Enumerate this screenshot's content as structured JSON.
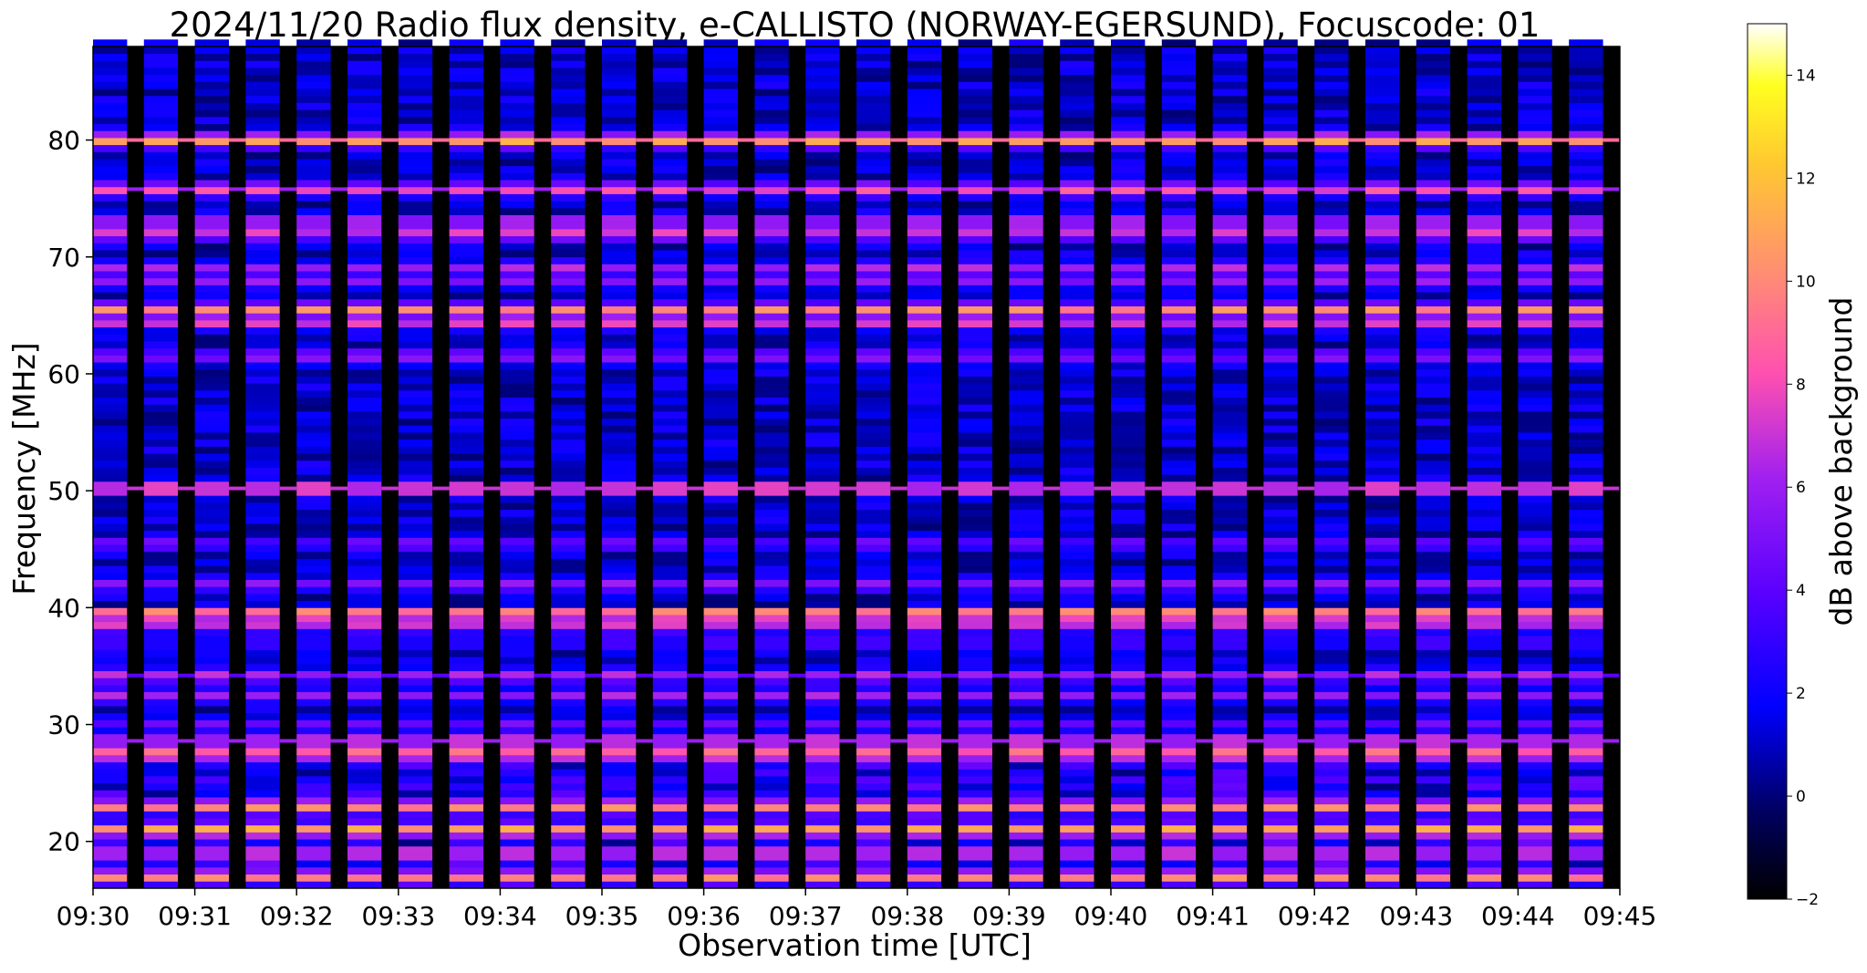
{
  "chart_data": {
    "type": "heatmap",
    "title": "2024/11/20  Radio flux density, e-CALLISTO (NORWAY-EGERSUND), Focuscode: 01",
    "xlabel": "Observation time [UTC]",
    "ylabel": "Frequency [MHz]",
    "x_range": [
      "09:30",
      "09:45"
    ],
    "x_ticks": [
      "09:30",
      "09:31",
      "09:32",
      "09:33",
      "09:34",
      "09:35",
      "09:36",
      "09:37",
      "09:38",
      "09:39",
      "09:40",
      "09:41",
      "09:42",
      "09:43",
      "09:44",
      "09:45"
    ],
    "y_range": [
      16,
      88
    ],
    "y_ticks": [
      20,
      30,
      40,
      50,
      60,
      70,
      80
    ],
    "colorbar": {
      "label": "dB above background",
      "range": [
        -2,
        15
      ],
      "ticks": [
        -2,
        0,
        2,
        4,
        6,
        8,
        10,
        12,
        14
      ],
      "colormap": "gnuplot2"
    },
    "sweep_period_minutes": 0.5,
    "gap_fraction_of_period": 0.33,
    "frequency_bands": [
      {
        "freq_mhz": 80.0,
        "db": 12
      },
      {
        "freq_mhz": 75.8,
        "db": 9
      },
      {
        "freq_mhz": 73.0,
        "db": 8
      },
      {
        "freq_mhz": 72.0,
        "db": 8
      },
      {
        "freq_mhz": 69.0,
        "db": 7
      },
      {
        "freq_mhz": 68.0,
        "db": 6
      },
      {
        "freq_mhz": 65.5,
        "db": 10
      },
      {
        "freq_mhz": 64.5,
        "db": 9
      },
      {
        "freq_mhz": 61.5,
        "db": 6
      },
      {
        "freq_mhz": 50.2,
        "db": 10
      },
      {
        "freq_mhz": 45.5,
        "db": 5
      },
      {
        "freq_mhz": 42.0,
        "db": 6
      },
      {
        "freq_mhz": 39.5,
        "db": 12
      },
      {
        "freq_mhz": 38.5,
        "db": 7
      },
      {
        "freq_mhz": 37.0,
        "db": 4
      },
      {
        "freq_mhz": 34.2,
        "db": 7
      },
      {
        "freq_mhz": 32.5,
        "db": 6
      },
      {
        "freq_mhz": 30.0,
        "db": 5
      },
      {
        "freq_mhz": 28.6,
        "db": 9
      },
      {
        "freq_mhz": 27.5,
        "db": 11
      },
      {
        "freq_mhz": 23.0,
        "db": 11
      },
      {
        "freq_mhz": 21.0,
        "db": 12
      },
      {
        "freq_mhz": 19.0,
        "db": 9
      },
      {
        "freq_mhz": 17.0,
        "db": 11
      }
    ]
  }
}
